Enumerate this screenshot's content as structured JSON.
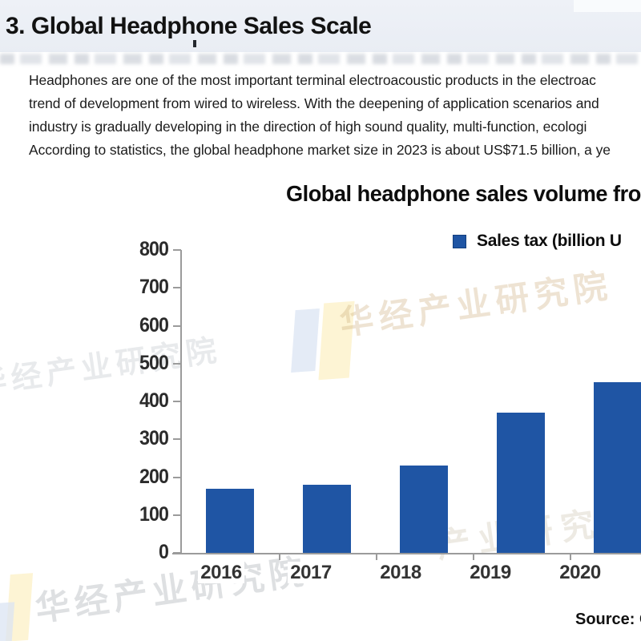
{
  "page": {
    "heading": "3. Global Headphone Sales Scale",
    "paragraph": {
      "lines": [
        "Headphones are one of the most important terminal electroacoustic products in the electroac",
        "trend of development from wired to wireless. With the deepening of application scenarios and",
        "industry is gradually developing in the direction of high sound quality, multi-function, ecologi",
        "According to statistics, the global headphone market size in 2023 is about US$71.5 billion, a ye"
      ]
    },
    "source_label": "Source: C"
  },
  "chart": {
    "title": "Global headphone sales volume fro",
    "legend": {
      "label": "Sales tax (billion U",
      "color": "#1f55a4"
    }
  },
  "chart_data": {
    "type": "bar",
    "title": "Global headphone sales volume fro",
    "legend_entries": [
      "Sales tax (billion U"
    ],
    "legend_position": "top",
    "categories": [
      "2016",
      "2017",
      "2018",
      "2019",
      "2020"
    ],
    "series": [
      {
        "name": "Sales tax (billion U",
        "values": [
          170,
          180,
          230,
          370,
          450
        ]
      }
    ],
    "ylim": [
      0,
      800
    ],
    "yticks": [
      0,
      100,
      200,
      300,
      400,
      500,
      600,
      700,
      800
    ],
    "grid": false,
    "bar_color": "#1f55a4",
    "axis_color": "#9b9b9b",
    "note_truncated_right": true
  },
  "watermark": {
    "text_full": "华经产业研究院",
    "text_left": "华经产业研究院",
    "text_bottom": "华经产业研究院",
    "text_mid": "产业研究院",
    "tan_color": "#c8a670",
    "gray_color": "#9aa0a8"
  }
}
